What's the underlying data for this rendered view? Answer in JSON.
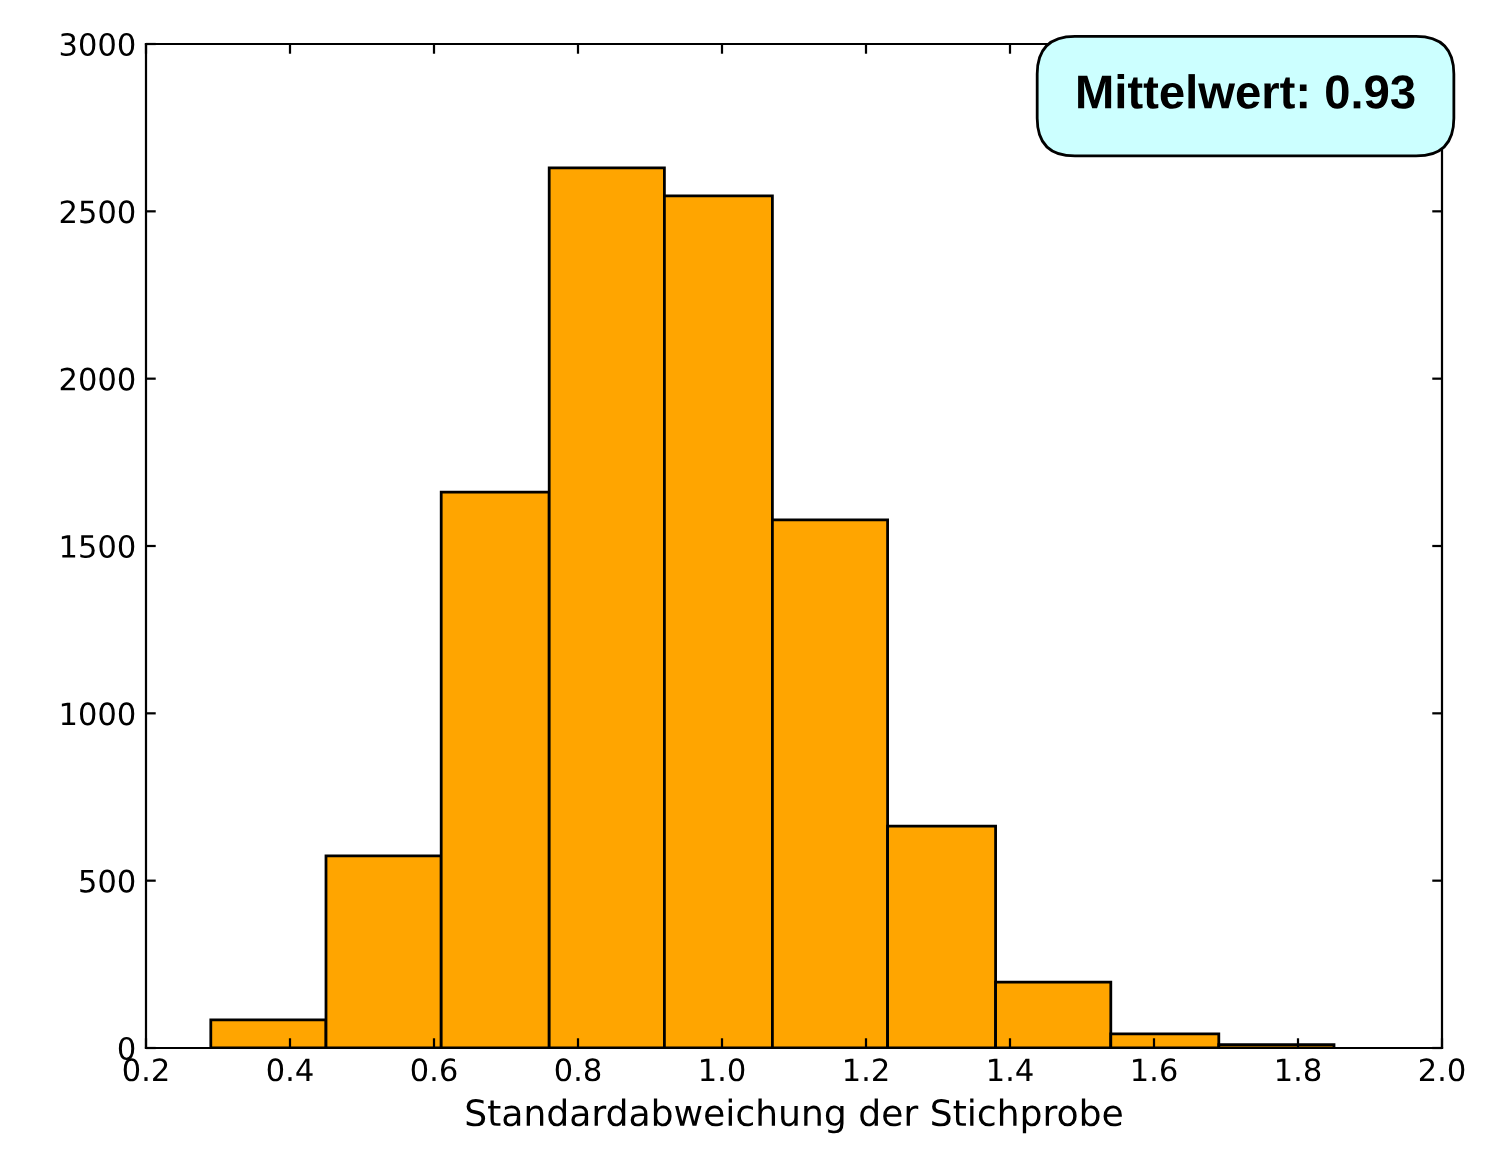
{
  "chart_data": {
    "type": "histogram",
    "xlabel": "Standardabweichung der Stichprobe",
    "bins": [
      0.29,
      0.45,
      0.61,
      0.76,
      0.92,
      1.07,
      1.23,
      1.38,
      1.54,
      1.69,
      1.85
    ],
    "values": [
      84,
      574,
      1661,
      2630,
      2546,
      1578,
      663,
      197,
      42,
      10
    ],
    "color": "#ffa500",
    "xlim": [
      0.2,
      2.0
    ],
    "xticks": [
      0.2,
      0.4,
      0.6,
      0.8,
      {
        "value": 1,
        "label": "1.0"
      },
      1.2,
      1.4,
      1.6,
      1.8,
      {
        "value": 2,
        "label": "2.0"
      }
    ],
    "ylim": [
      0,
      3000
    ],
    "yticks": [
      0,
      500,
      1000,
      1500,
      2000,
      2500,
      3000
    ],
    "grid": false,
    "annotations": [
      "Mittelwert: 0.93"
    ]
  }
}
